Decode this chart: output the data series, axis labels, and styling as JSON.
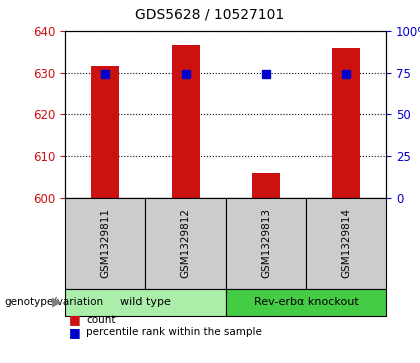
{
  "title": "GDS5628 / 10527101",
  "samples": [
    "GSM1329811",
    "GSM1329812",
    "GSM1329813",
    "GSM1329814"
  ],
  "bar_values": [
    631.5,
    636.5,
    606.0,
    636.0
  ],
  "percentile_values": [
    74,
    74,
    74,
    74
  ],
  "ylim_left": [
    600,
    640
  ],
  "ylim_right": [
    0,
    100
  ],
  "yticks_left": [
    600,
    610,
    620,
    630,
    640
  ],
  "yticks_right": [
    0,
    25,
    50,
    75,
    100
  ],
  "bar_color": "#cc1111",
  "percentile_color": "#0000cc",
  "groups": [
    {
      "label": "wild type",
      "samples": [
        0,
        1
      ],
      "color": "#aaeeaa"
    },
    {
      "label": "Rev-erbα knockout",
      "samples": [
        2,
        3
      ],
      "color": "#44cc44"
    }
  ],
  "group_label": "genotype/variation",
  "legend_count_label": "count",
  "legend_pct_label": "percentile rank within the sample",
  "background_color": "#ffffff",
  "plot_bg": "#ffffff",
  "bar_width": 0.35,
  "percentile_marker_size": 6,
  "sample_bg": "#cccccc"
}
